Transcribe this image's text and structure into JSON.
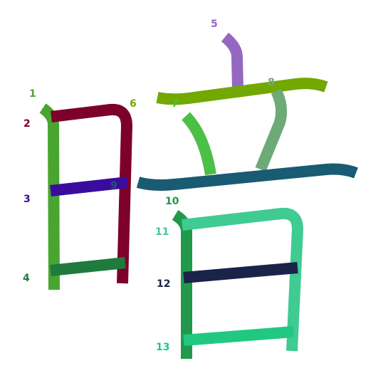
{
  "character": "暗",
  "strokes": [
    {
      "order": "1",
      "label": "1",
      "color": "#4aa530",
      "label_color": "#4aa530"
    },
    {
      "order": "2",
      "label": "2",
      "color": "#7d0028",
      "label_color": "#7d0028"
    },
    {
      "order": "3",
      "label": "3",
      "color": "#3a0c9e",
      "label_color": "#3a0c9e"
    },
    {
      "order": "4",
      "label": "4",
      "color": "#1f7a3e",
      "label_color": "#1f7a3e"
    },
    {
      "order": "5",
      "label": "5",
      "color": "#9468c0",
      "label_color": "#9468c0"
    },
    {
      "order": "6",
      "label": "6",
      "color": "#72a800",
      "label_color": "#72a800"
    },
    {
      "order": "7",
      "label": "7",
      "color": "#4cbf45",
      "label_color": "#4cbf45"
    },
    {
      "order": "8",
      "label": "8",
      "color": "#6daa78",
      "label_color": "#6daa78"
    },
    {
      "order": "9",
      "label": "9",
      "color": "#195b72",
      "label_color": "#195b72"
    },
    {
      "order": "10",
      "label": "10",
      "color": "#209a4a",
      "label_color": "#209a4a"
    },
    {
      "order": "11",
      "label": "11",
      "color": "#3fcb92",
      "label_color": "#3fcb92"
    },
    {
      "order": "12",
      "label": "12",
      "color": "#1a234a",
      "label_color": "#1a234a"
    },
    {
      "order": "13",
      "label": "13",
      "color": "#20c882",
      "label_color": "#20c882"
    }
  ]
}
